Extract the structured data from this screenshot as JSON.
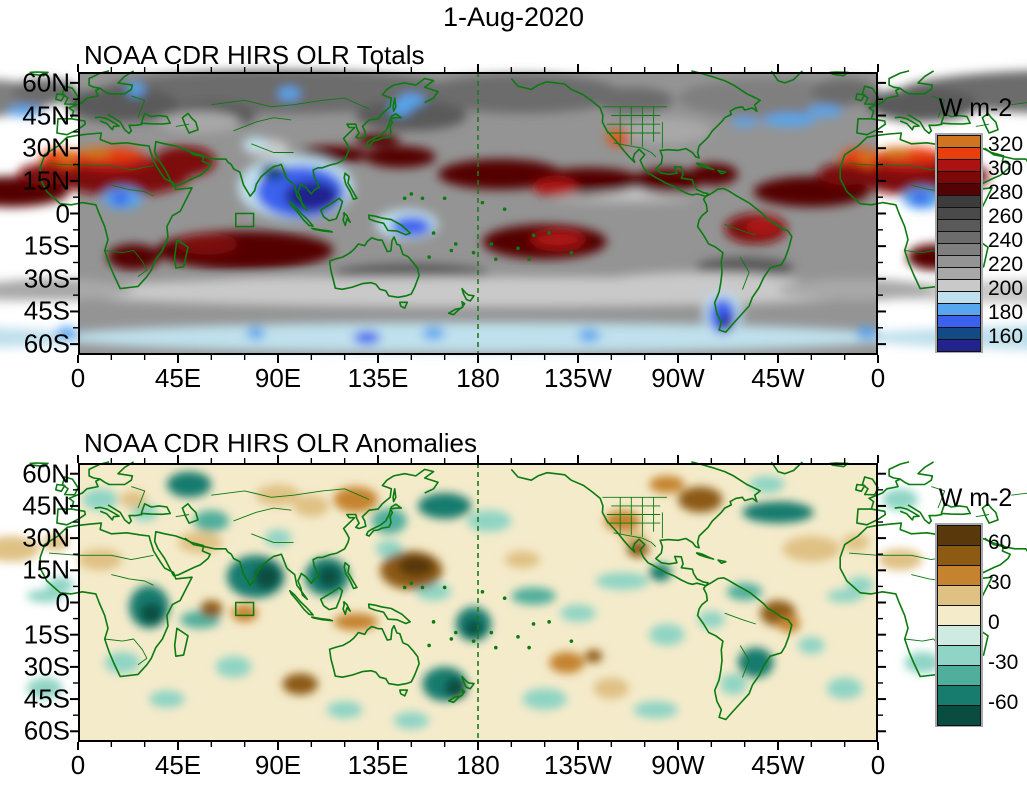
{
  "main_title": "1-Aug-2020",
  "panels": [
    {
      "id": "totals",
      "title": "NOAA CDR HIRS OLR Totals",
      "colorbar": {
        "title": "W m-2",
        "labels": [
          "320",
          "300",
          "280",
          "260",
          "240",
          "220",
          "200",
          "180",
          "160"
        ]
      }
    },
    {
      "id": "anomalies",
      "title": "NOAA CDR HIRS OLR Anomalies",
      "colorbar": {
        "title": "W m-2",
        "labels": [
          "60",
          "30",
          "0",
          "-30",
          "-60"
        ]
      }
    }
  ],
  "axes": {
    "x_labels": [
      "0",
      "45E",
      "90E",
      "135E",
      "180",
      "135W",
      "90W",
      "45W",
      "0"
    ],
    "y_labels": [
      "60N",
      "45N",
      "30N",
      "15N",
      "0",
      "15S",
      "30S",
      "45S",
      "60S"
    ]
  },
  "overlay": {
    "coastline_color": "#0b7a10",
    "dateline_color": "#1e7a1e",
    "dateline_longitude_deg_east": 180,
    "roi_box_lon_deg_east": [
      71,
      79
    ],
    "roi_box_lat_deg": [
      -6,
      0
    ]
  },
  "chart_data": [
    {
      "type": "heatmap",
      "title": "NOAA CDR HIRS OLR Totals",
      "date": "1-Aug-2020",
      "units": "W m-2",
      "x_axis": {
        "ticks": [
          "0",
          "45E",
          "90E",
          "135E",
          "180",
          "135W",
          "90W",
          "45W",
          "0"
        ],
        "range_deg_east": [
          0,
          360
        ],
        "major_tick_step_deg": 45,
        "minor_tick_step_deg": 15
      },
      "y_axis": {
        "ticks": [
          "60N",
          "45N",
          "30N",
          "15N",
          "0",
          "15S",
          "30S",
          "45S",
          "60S"
        ],
        "range_deg_lat": [
          -65,
          65
        ],
        "major_tick_step_deg": 15,
        "minor_tick_step_deg": 7.5
      },
      "contour_levels": [
        160,
        170,
        180,
        190,
        200,
        210,
        220,
        230,
        240,
        250,
        260,
        270,
        280,
        290,
        300,
        310,
        320
      ],
      "colorbar_tick_labels": [
        "320",
        "300",
        "280",
        "260",
        "240",
        "220",
        "200",
        "180",
        "160"
      ],
      "palette_low_to_high": [
        "#23238e",
        "#124a86",
        "#3a62ee",
        "#57a6ef",
        "#bfe0ec",
        "#c9c9c9",
        "#a8a8a8",
        "#949494",
        "#7f7f7f",
        "#6c6c6c",
        "#5a5a5a",
        "#4a4a4a",
        "#3c3c3c",
        "#540204",
        "#7d0808",
        "#ad1212",
        "#e93e0e",
        "#d0751f"
      ],
      "background_value": 225,
      "feature_format": [
        "lon_deg_east",
        "lat_deg",
        "radius_lon_deg",
        "radius_lat_deg",
        "approx_value_wm2"
      ],
      "features": [
        [
          90,
          56,
          80,
          10,
          245
        ],
        [
          200,
          55,
          45,
          9,
          245
        ],
        [
          310,
          53,
          40,
          9,
          235
        ],
        [
          20,
          50,
          25,
          8,
          255
        ],
        [
          150,
          45,
          25,
          7,
          255
        ],
        [
          250,
          52,
          18,
          6,
          245
        ],
        [
          345,
          56,
          15,
          6,
          245
        ],
        [
          60,
          45,
          20,
          6,
          255
        ],
        [
          150,
          -28,
          35,
          5,
          255
        ],
        [
          300,
          -25,
          22,
          5,
          255
        ],
        [
          180,
          -36,
          190,
          7,
          205
        ],
        [
          100,
          -34,
          55,
          5,
          205
        ],
        [
          280,
          -32,
          45,
          5,
          205
        ],
        [
          350,
          -35,
          35,
          5,
          215
        ],
        [
          180,
          -57,
          190,
          7,
          195
        ],
        [
          55,
          42,
          18,
          5,
          215
        ],
        [
          265,
          38,
          20,
          6,
          215
        ],
        [
          245,
          7,
          32,
          3,
          215
        ],
        [
          250,
          9,
          20,
          2,
          205
        ],
        [
          85,
          30,
          10,
          4,
          205
        ],
        [
          20,
          17,
          30,
          9,
          295
        ],
        [
          48,
          24,
          14,
          7,
          295
        ],
        [
          15,
          24,
          18,
          5,
          305
        ],
        [
          14,
          27,
          15,
          3.5,
          315
        ],
        [
          8,
          28,
          7,
          2.5,
          325
        ],
        [
          352,
          25,
          9,
          5,
          315
        ],
        [
          355,
          26,
          4,
          2.5,
          325
        ],
        [
          115,
          27,
          16,
          4,
          285
        ],
        [
          135,
          34,
          10,
          3,
          285
        ],
        [
          75,
          -17,
          40,
          9,
          285
        ],
        [
          58,
          -14,
          14,
          5,
          295
        ],
        [
          25,
          -20,
          12,
          6,
          285
        ],
        [
          145,
          26,
          16,
          5,
          285
        ],
        [
          190,
          18,
          28,
          7,
          285
        ],
        [
          230,
          15,
          24,
          6,
          285
        ],
        [
          215,
          12,
          10,
          4,
          305
        ],
        [
          210,
          -13,
          28,
          8,
          285
        ],
        [
          216,
          -12,
          12,
          4,
          305
        ],
        [
          305,
          -7,
          14,
          7,
          295
        ],
        [
          308,
          -6,
          8,
          4,
          305
        ],
        [
          265,
          15,
          15,
          6,
          285
        ],
        [
          286,
          18,
          11,
          5,
          285
        ],
        [
          330,
          10,
          26,
          7,
          285
        ],
        [
          345,
          18,
          12,
          5,
          295
        ],
        [
          243,
          35,
          5,
          4,
          315
        ],
        [
          242,
          36,
          2.5,
          2,
          325
        ],
        [
          20,
          7,
          9,
          5,
          185
        ],
        [
          19,
          7,
          4,
          3,
          175
        ],
        [
          98,
          12,
          26,
          15,
          195
        ],
        [
          100,
          10,
          20,
          12,
          175
        ],
        [
          105,
          8,
          12,
          7,
          155
        ],
        [
          88,
          19,
          6,
          4,
          165
        ],
        [
          148,
          -5,
          14,
          7,
          195
        ],
        [
          150,
          -6,
          9,
          4.5,
          175
        ],
        [
          320,
          43,
          12,
          3,
          185
        ],
        [
          336,
          47,
          8,
          2.5,
          185
        ],
        [
          300,
          42,
          6,
          2,
          185
        ],
        [
          290,
          -46,
          9,
          10,
          195
        ],
        [
          290,
          -47,
          6,
          8,
          175
        ],
        [
          292,
          -50,
          3,
          4,
          155
        ],
        [
          130,
          -57,
          6,
          3,
          175
        ],
        [
          160,
          -55,
          5,
          3,
          185
        ],
        [
          230,
          -56,
          5,
          3,
          185
        ],
        [
          80,
          -55,
          4,
          3,
          185
        ],
        [
          355,
          -55,
          5,
          3,
          185
        ],
        [
          150,
          52,
          6,
          3,
          185
        ],
        [
          145,
          48,
          5,
          3,
          185
        ],
        [
          95,
          55,
          5,
          3,
          185
        ],
        [
          26,
          57,
          4,
          3,
          185
        ],
        [
          80,
          32,
          6,
          3,
          195
        ]
      ]
    },
    {
      "type": "heatmap",
      "title": "NOAA CDR HIRS OLR Anomalies",
      "date": "1-Aug-2020",
      "units": "W m-2",
      "x_axis": {
        "ticks": [
          "0",
          "45E",
          "90E",
          "135E",
          "180",
          "135W",
          "90W",
          "45W",
          "0"
        ],
        "range_deg_east": [
          0,
          360
        ],
        "major_tick_step_deg": 45,
        "minor_tick_step_deg": 15
      },
      "y_axis": {
        "ticks": [
          "60N",
          "45N",
          "30N",
          "15N",
          "0",
          "15S",
          "30S",
          "45S",
          "60S"
        ],
        "range_deg_lat": [
          -65,
          65
        ],
        "major_tick_step_deg": 15,
        "minor_tick_step_deg": 7.5
      },
      "contour_levels": [
        -60,
        -45,
        -30,
        -15,
        0,
        15,
        30,
        45,
        60
      ],
      "colorbar_tick_labels": [
        "60",
        "30",
        "0",
        "-30",
        "-60"
      ],
      "palette_low_to_high": [
        "#084d40",
        "#177c6e",
        "#4fae9c",
        "#8fd4c4",
        "#cdebe0",
        "#f4ebcb",
        "#dfc184",
        "#c5832f",
        "#8c5a12",
        "#59380b"
      ],
      "background_value": 7,
      "feature_format": [
        "lon_deg_east",
        "lat_deg",
        "radius_lon_deg",
        "radius_lat_deg",
        "approx_value_wm2"
      ],
      "features": [
        [
          140,
          25,
          6,
          4,
          -22
        ],
        [
          90,
          30,
          6,
          4,
          -22
        ],
        [
          160,
          5,
          8,
          4,
          -22
        ],
        [
          265,
          -15,
          8,
          5,
          -22
        ],
        [
          285,
          -8,
          6,
          4,
          -22
        ],
        [
          20,
          -28,
          8,
          5,
          -22
        ],
        [
          40,
          -45,
          8,
          4,
          -22
        ],
        [
          70,
          -30,
          8,
          5,
          -22
        ],
        [
          150,
          -55,
          8,
          4,
          -22
        ],
        [
          310,
          55,
          8,
          4,
          -22
        ],
        [
          32,
          -2,
          9,
          10,
          -52
        ],
        [
          33,
          -5,
          5,
          5,
          -70
        ],
        [
          352,
          8,
          6,
          4,
          -22
        ],
        [
          10,
          48,
          8,
          5,
          -22
        ],
        [
          50,
          55,
          10,
          6,
          -52
        ],
        [
          30,
          42,
          6,
          4,
          -22
        ],
        [
          60,
          38,
          8,
          5,
          -37
        ],
        [
          80,
          12,
          13,
          10,
          -52
        ],
        [
          85,
          12,
          6,
          6,
          -70
        ],
        [
          112,
          12,
          10,
          9,
          -52
        ],
        [
          113,
          12,
          5,
          5,
          -70
        ],
        [
          140,
          38,
          8,
          6,
          -37
        ],
        [
          165,
          45,
          12,
          6,
          -52
        ],
        [
          185,
          38,
          10,
          5,
          -22
        ],
        [
          178,
          -10,
          8,
          8,
          -52
        ],
        [
          178,
          -12,
          4,
          4,
          -70
        ],
        [
          205,
          3,
          10,
          4,
          -37
        ],
        [
          225,
          -5,
          8,
          4,
          -22
        ],
        [
          245,
          10,
          12,
          4,
          -22
        ],
        [
          262,
          14,
          5,
          4,
          -52
        ],
        [
          315,
          42,
          16,
          5,
          -52
        ],
        [
          318,
          44,
          8,
          3,
          -52
        ],
        [
          300,
          5,
          8,
          4,
          -37
        ],
        [
          345,
          3,
          8,
          3,
          -22
        ],
        [
          305,
          -28,
          8,
          7,
          -52
        ],
        [
          295,
          -38,
          6,
          5,
          -22
        ],
        [
          165,
          -38,
          10,
          8,
          -52
        ],
        [
          170,
          -40,
          5,
          5,
          -70
        ],
        [
          55,
          -8,
          9,
          4,
          -37
        ],
        [
          345,
          -40,
          8,
          5,
          -22
        ],
        [
          330,
          -20,
          6,
          4,
          -22
        ],
        [
          210,
          -45,
          10,
          5,
          -22
        ],
        [
          120,
          -50,
          8,
          4,
          -22
        ],
        [
          260,
          -50,
          10,
          4,
          -22
        ],
        [
          150,
          15,
          14,
          9,
          52
        ],
        [
          152,
          17,
          8,
          5,
          70
        ],
        [
          125,
          48,
          10,
          6,
          37
        ],
        [
          105,
          45,
          8,
          5,
          22
        ],
        [
          90,
          50,
          10,
          5,
          22
        ],
        [
          280,
          48,
          10,
          6,
          52
        ],
        [
          265,
          55,
          8,
          4,
          37
        ],
        [
          245,
          38,
          8,
          5,
          37
        ],
        [
          250,
          30,
          6,
          4,
          22
        ],
        [
          252,
          25,
          5,
          4,
          52
        ],
        [
          315,
          -5,
          8,
          6,
          52
        ],
        [
          320,
          -10,
          5,
          4,
          37
        ],
        [
          60,
          -3,
          5,
          4,
          52
        ],
        [
          75,
          -5,
          6,
          4,
          37
        ],
        [
          125,
          -9,
          10,
          4,
          37
        ],
        [
          100,
          -38,
          8,
          5,
          52
        ],
        [
          220,
          -28,
          8,
          5,
          37
        ],
        [
          232,
          -25,
          4,
          3,
          52
        ],
        [
          240,
          -40,
          8,
          5,
          22
        ],
        [
          10,
          20,
          10,
          5,
          22
        ],
        [
          350,
          28,
          6,
          4,
          22
        ],
        [
          55,
          28,
          10,
          5,
          22
        ],
        [
          330,
          25,
          13,
          6,
          22
        ],
        [
          25,
          48,
          6,
          4,
          22
        ],
        [
          200,
          20,
          8,
          4,
          22
        ]
      ]
    }
  ]
}
